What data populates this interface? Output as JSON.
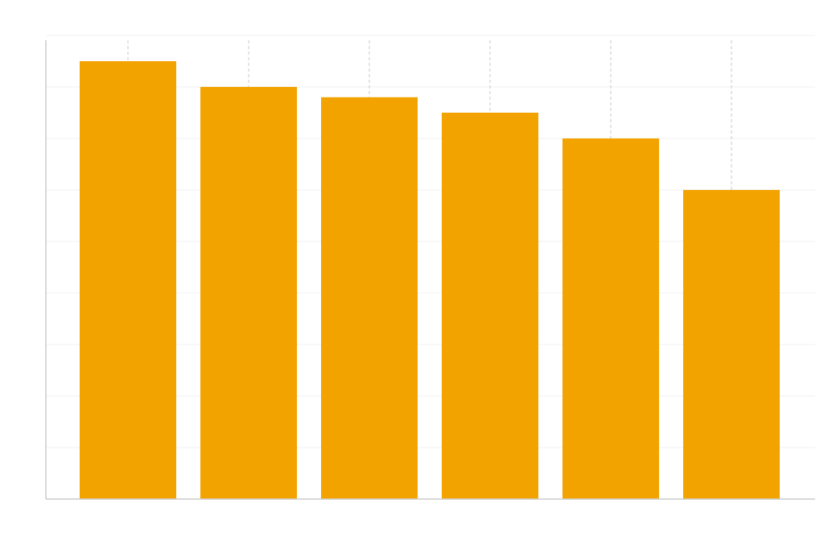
{
  "chart_data": {
    "type": "bar",
    "categories": [
      null,
      null,
      null,
      null,
      null,
      null
    ],
    "values": [
      8.5,
      8.0,
      7.8,
      7.5,
      7.0,
      6.0
    ],
    "color": "#f2a300",
    "ylim": [
      0,
      9
    ],
    "yticks": [
      0,
      1,
      2,
      3,
      4,
      5,
      6,
      7,
      8,
      9
    ],
    "grid": true
  }
}
